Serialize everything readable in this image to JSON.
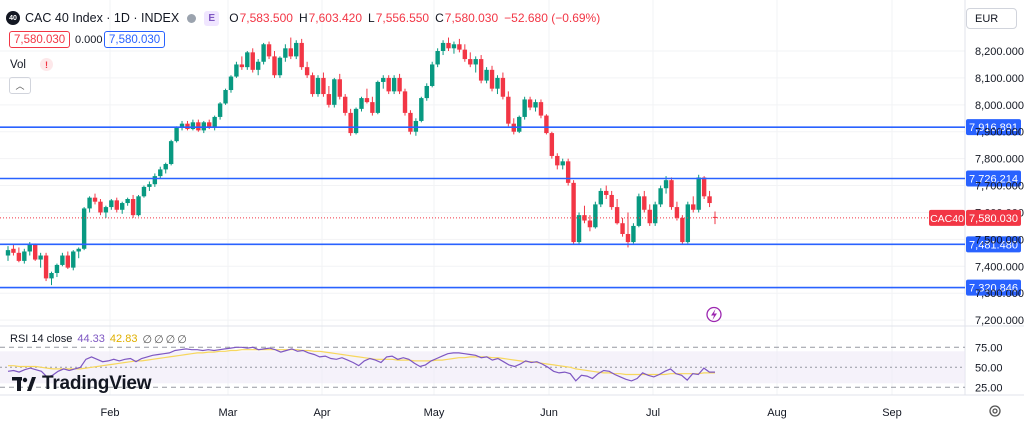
{
  "header": {
    "badge": "40",
    "title": "CAC 40 Index · 1D · INDEX",
    "e_badge": "E",
    "open_label": "O",
    "open": "7,583.500",
    "high_label": "H",
    "high": "7,603.420",
    "low_label": "L",
    "low": "7,556.550",
    "close_label": "C",
    "close": "7,580.030",
    "change": "−52.680 (−0.69%)"
  },
  "quote": {
    "sell": "7,580.030",
    "spread": "0.000",
    "buy": "7,580.030"
  },
  "volume": {
    "label": "Vol",
    "warning": "!"
  },
  "currency": "EUR",
  "rsi_header": {
    "label": "RSI 14 close",
    "value": "44.33",
    "ma": "42.83",
    "empties": [
      "∅",
      "∅",
      "∅",
      "∅"
    ]
  },
  "logo": {
    "text": "TradingView"
  },
  "colors": {
    "up": "#089981",
    "down": "#f23645",
    "hline": "#2962ff",
    "rsi": "#7e57c2",
    "rsi_ma": "#f7d75d",
    "rsi_band": "#ede7f6"
  },
  "chart_data": {
    "type": "candlestick",
    "price_axis": {
      "ticks": [
        "8,200.000",
        "8,100.000",
        "8,000.000",
        "7,900.000",
        "7,800.000",
        "7,700.000",
        "7,600.000",
        "7,500.000",
        "7,400.000",
        "7,300.000",
        "7,200.000"
      ],
      "tick_values": [
        8200,
        8100,
        8000,
        7900,
        7800,
        7700,
        7600,
        7500,
        7400,
        7300,
        7200
      ]
    },
    "time_axis": [
      "Feb",
      "Mar",
      "Apr",
      "May",
      "Jun",
      "Jul",
      "Aug",
      "Sep"
    ],
    "horizontal_lines": [
      {
        "label": "7,916.891",
        "value": 7916.891
      },
      {
        "label": "7,726.214",
        "value": 7726.214
      },
      {
        "label": "7,481.480",
        "value": 7481.48
      },
      {
        "label": "7,320.846",
        "value": 7320.846
      }
    ],
    "last_price": {
      "symbol": "CAC40",
      "label": "7,580.030",
      "value": 7580.03
    },
    "candles": [
      {
        "o": 7440,
        "h": 7475,
        "l": 7420,
        "c": 7460
      },
      {
        "o": 7465,
        "h": 7480,
        "l": 7440,
        "c": 7450
      },
      {
        "o": 7450,
        "h": 7470,
        "l": 7415,
        "c": 7420
      },
      {
        "o": 7420,
        "h": 7465,
        "l": 7410,
        "c": 7455
      },
      {
        "o": 7455,
        "h": 7490,
        "l": 7440,
        "c": 7480
      },
      {
        "o": 7480,
        "h": 7485,
        "l": 7420,
        "c": 7425
      },
      {
        "o": 7425,
        "h": 7450,
        "l": 7395,
        "c": 7440
      },
      {
        "o": 7440,
        "h": 7450,
        "l": 7345,
        "c": 7355
      },
      {
        "o": 7355,
        "h": 7380,
        "l": 7330,
        "c": 7375
      },
      {
        "o": 7375,
        "h": 7410,
        "l": 7360,
        "c": 7405
      },
      {
        "o": 7405,
        "h": 7450,
        "l": 7400,
        "c": 7440
      },
      {
        "o": 7440,
        "h": 7455,
        "l": 7390,
        "c": 7395
      },
      {
        "o": 7395,
        "h": 7460,
        "l": 7385,
        "c": 7455
      },
      {
        "o": 7455,
        "h": 7470,
        "l": 7430,
        "c": 7465
      },
      {
        "o": 7465,
        "h": 7620,
        "l": 7460,
        "c": 7615
      },
      {
        "o": 7615,
        "h": 7660,
        "l": 7600,
        "c": 7655
      },
      {
        "o": 7655,
        "h": 7670,
        "l": 7630,
        "c": 7640
      },
      {
        "o": 7640,
        "h": 7650,
        "l": 7590,
        "c": 7600
      },
      {
        "o": 7600,
        "h": 7625,
        "l": 7580,
        "c": 7620
      },
      {
        "o": 7620,
        "h": 7650,
        "l": 7610,
        "c": 7645
      },
      {
        "o": 7645,
        "h": 7655,
        "l": 7600,
        "c": 7610
      },
      {
        "o": 7610,
        "h": 7640,
        "l": 7595,
        "c": 7635
      },
      {
        "o": 7635,
        "h": 7655,
        "l": 7625,
        "c": 7650
      },
      {
        "o": 7650,
        "h": 7665,
        "l": 7580,
        "c": 7590
      },
      {
        "o": 7590,
        "h": 7665,
        "l": 7585,
        "c": 7660
      },
      {
        "o": 7660,
        "h": 7700,
        "l": 7655,
        "c": 7695
      },
      {
        "o": 7695,
        "h": 7715,
        "l": 7680,
        "c": 7705
      },
      {
        "o": 7705,
        "h": 7745,
        "l": 7695,
        "c": 7735
      },
      {
        "o": 7735,
        "h": 7770,
        "l": 7725,
        "c": 7760
      },
      {
        "o": 7760,
        "h": 7785,
        "l": 7745,
        "c": 7780
      },
      {
        "o": 7780,
        "h": 7870,
        "l": 7775,
        "c": 7865
      },
      {
        "o": 7865,
        "h": 7920,
        "l": 7860,
        "c": 7915
      },
      {
        "o": 7915,
        "h": 7940,
        "l": 7905,
        "c": 7930
      },
      {
        "o": 7930,
        "h": 7940,
        "l": 7905,
        "c": 7910
      },
      {
        "o": 7910,
        "h": 7945,
        "l": 7905,
        "c": 7935
      },
      {
        "o": 7935,
        "h": 7945,
        "l": 7900,
        "c": 7905
      },
      {
        "o": 7905,
        "h": 7940,
        "l": 7895,
        "c": 7935
      },
      {
        "o": 7935,
        "h": 7945,
        "l": 7910,
        "c": 7915
      },
      {
        "o": 7915,
        "h": 7960,
        "l": 7905,
        "c": 7955
      },
      {
        "o": 7955,
        "h": 8010,
        "l": 7945,
        "c": 8005
      },
      {
        "o": 8005,
        "h": 8060,
        "l": 8000,
        "c": 8055
      },
      {
        "o": 8055,
        "h": 8110,
        "l": 8045,
        "c": 8105
      },
      {
        "o": 8105,
        "h": 8160,
        "l": 8100,
        "c": 8150
      },
      {
        "o": 8150,
        "h": 8180,
        "l": 8130,
        "c": 8140
      },
      {
        "o": 8140,
        "h": 8200,
        "l": 8130,
        "c": 8195
      },
      {
        "o": 8195,
        "h": 8210,
        "l": 8120,
        "c": 8130
      },
      {
        "o": 8130,
        "h": 8170,
        "l": 8110,
        "c": 8160
      },
      {
        "o": 8160,
        "h": 8230,
        "l": 8150,
        "c": 8225
      },
      {
        "o": 8225,
        "h": 8235,
        "l": 8170,
        "c": 8180
      },
      {
        "o": 8180,
        "h": 8200,
        "l": 8100,
        "c": 8110
      },
      {
        "o": 8110,
        "h": 8180,
        "l": 8100,
        "c": 8175
      },
      {
        "o": 8175,
        "h": 8225,
        "l": 8160,
        "c": 8210
      },
      {
        "o": 8210,
        "h": 8250,
        "l": 8170,
        "c": 8180
      },
      {
        "o": 8180,
        "h": 8240,
        "l": 8170,
        "c": 8230
      },
      {
        "o": 8230,
        "h": 8245,
        "l": 8130,
        "c": 8140
      },
      {
        "o": 8140,
        "h": 8160,
        "l": 8100,
        "c": 8110
      },
      {
        "o": 8110,
        "h": 8120,
        "l": 8030,
        "c": 8040
      },
      {
        "o": 8040,
        "h": 8110,
        "l": 8030,
        "c": 8100
      },
      {
        "o": 8100,
        "h": 8120,
        "l": 8030,
        "c": 8040
      },
      {
        "o": 8040,
        "h": 8070,
        "l": 7990,
        "c": 8000
      },
      {
        "o": 8000,
        "h": 8100,
        "l": 7990,
        "c": 8095
      },
      {
        "o": 8095,
        "h": 8115,
        "l": 8020,
        "c": 8030
      },
      {
        "o": 8030,
        "h": 8040,
        "l": 7960,
        "c": 7970
      },
      {
        "o": 7970,
        "h": 7985,
        "l": 7885,
        "c": 7895
      },
      {
        "o": 7895,
        "h": 7990,
        "l": 7890,
        "c": 7985
      },
      {
        "o": 7985,
        "h": 8030,
        "l": 7975,
        "c": 8025
      },
      {
        "o": 8025,
        "h": 8060,
        "l": 8005,
        "c": 8010
      },
      {
        "o": 8010,
        "h": 8030,
        "l": 7960,
        "c": 7970
      },
      {
        "o": 7970,
        "h": 8090,
        "l": 7965,
        "c": 8085
      },
      {
        "o": 8085,
        "h": 8110,
        "l": 8060,
        "c": 8100
      },
      {
        "o": 8100,
        "h": 8110,
        "l": 8040,
        "c": 8050
      },
      {
        "o": 8050,
        "h": 8110,
        "l": 8040,
        "c": 8100
      },
      {
        "o": 8100,
        "h": 8115,
        "l": 8040,
        "c": 8050
      },
      {
        "o": 8050,
        "h": 8060,
        "l": 7960,
        "c": 7970
      },
      {
        "o": 7970,
        "h": 7980,
        "l": 7890,
        "c": 7900
      },
      {
        "o": 7900,
        "h": 7950,
        "l": 7885,
        "c": 7940
      },
      {
        "o": 7940,
        "h": 8030,
        "l": 7935,
        "c": 8025
      },
      {
        "o": 8025,
        "h": 8080,
        "l": 8015,
        "c": 8070
      },
      {
        "o": 8070,
        "h": 8160,
        "l": 8065,
        "c": 8150
      },
      {
        "o": 8150,
        "h": 8210,
        "l": 8140,
        "c": 8200
      },
      {
        "o": 8200,
        "h": 8240,
        "l": 8185,
        "c": 8230
      },
      {
        "o": 8230,
        "h": 8250,
        "l": 8200,
        "c": 8210
      },
      {
        "o": 8210,
        "h": 8235,
        "l": 8190,
        "c": 8225
      },
      {
        "o": 8225,
        "h": 8245,
        "l": 8195,
        "c": 8205
      },
      {
        "o": 8205,
        "h": 8225,
        "l": 8160,
        "c": 8170
      },
      {
        "o": 8170,
        "h": 8195,
        "l": 8140,
        "c": 8150
      },
      {
        "o": 8150,
        "h": 8180,
        "l": 8120,
        "c": 8170
      },
      {
        "o": 8170,
        "h": 8185,
        "l": 8080,
        "c": 8090
      },
      {
        "o": 8090,
        "h": 8140,
        "l": 8080,
        "c": 8130
      },
      {
        "o": 8130,
        "h": 8145,
        "l": 8050,
        "c": 8060
      },
      {
        "o": 8060,
        "h": 8110,
        "l": 8040,
        "c": 8100
      },
      {
        "o": 8100,
        "h": 8120,
        "l": 8020,
        "c": 8030
      },
      {
        "o": 8030,
        "h": 8050,
        "l": 7920,
        "c": 7930
      },
      {
        "o": 7930,
        "h": 7950,
        "l": 7890,
        "c": 7900
      },
      {
        "o": 7900,
        "h": 7960,
        "l": 7895,
        "c": 7955
      },
      {
        "o": 7955,
        "h": 8030,
        "l": 7945,
        "c": 8020
      },
      {
        "o": 8020,
        "h": 8030,
        "l": 7980,
        "c": 7990
      },
      {
        "o": 7990,
        "h": 8020,
        "l": 7975,
        "c": 8010
      },
      {
        "o": 8010,
        "h": 8020,
        "l": 7950,
        "c": 7960
      },
      {
        "o": 7960,
        "h": 7965,
        "l": 7890,
        "c": 7895
      },
      {
        "o": 7895,
        "h": 7900,
        "l": 7800,
        "c": 7810
      },
      {
        "o": 7810,
        "h": 7820,
        "l": 7760,
        "c": 7775
      },
      {
        "o": 7775,
        "h": 7800,
        "l": 7760,
        "c": 7790
      },
      {
        "o": 7790,
        "h": 7800,
        "l": 7700,
        "c": 7710
      },
      {
        "o": 7710,
        "h": 7720,
        "l": 7480,
        "c": 7490
      },
      {
        "o": 7490,
        "h": 7600,
        "l": 7480,
        "c": 7590
      },
      {
        "o": 7590,
        "h": 7625,
        "l": 7560,
        "c": 7570
      },
      {
        "o": 7570,
        "h": 7590,
        "l": 7530,
        "c": 7545
      },
      {
        "o": 7545,
        "h": 7640,
        "l": 7540,
        "c": 7630
      },
      {
        "o": 7630,
        "h": 7690,
        "l": 7620,
        "c": 7680
      },
      {
        "o": 7680,
        "h": 7700,
        "l": 7650,
        "c": 7665
      },
      {
        "o": 7665,
        "h": 7680,
        "l": 7610,
        "c": 7620
      },
      {
        "o": 7620,
        "h": 7650,
        "l": 7555,
        "c": 7560
      },
      {
        "o": 7560,
        "h": 7580,
        "l": 7510,
        "c": 7520
      },
      {
        "o": 7520,
        "h": 7600,
        "l": 7470,
        "c": 7490
      },
      {
        "o": 7490,
        "h": 7560,
        "l": 7485,
        "c": 7550
      },
      {
        "o": 7550,
        "h": 7670,
        "l": 7545,
        "c": 7660
      },
      {
        "o": 7660,
        "h": 7680,
        "l": 7600,
        "c": 7610
      },
      {
        "o": 7610,
        "h": 7630,
        "l": 7550,
        "c": 7560
      },
      {
        "o": 7560,
        "h": 7640,
        "l": 7550,
        "c": 7630
      },
      {
        "o": 7630,
        "h": 7700,
        "l": 7620,
        "c": 7690
      },
      {
        "o": 7690,
        "h": 7735,
        "l": 7670,
        "c": 7720
      },
      {
        "o": 7720,
        "h": 7730,
        "l": 7610,
        "c": 7620
      },
      {
        "o": 7620,
        "h": 7640,
        "l": 7570,
        "c": 7580
      },
      {
        "o": 7580,
        "h": 7590,
        "l": 7480,
        "c": 7490
      },
      {
        "o": 7490,
        "h": 7640,
        "l": 7485,
        "c": 7630
      },
      {
        "o": 7630,
        "h": 7660,
        "l": 7600,
        "c": 7610
      },
      {
        "o": 7610,
        "h": 7740,
        "l": 7600,
        "c": 7730
      },
      {
        "o": 7730,
        "h": 7735,
        "l": 7650,
        "c": 7660
      },
      {
        "o": 7660,
        "h": 7680,
        "l": 7620,
        "c": 7635
      },
      {
        "o": 7583.5,
        "h": 7603.42,
        "l": 7556.55,
        "c": 7580.03
      }
    ],
    "rsi": {
      "label": "RSI 14 close",
      "levels": [
        75,
        50,
        25
      ],
      "level_labels": [
        "75.00",
        "50.00",
        "25.00"
      ],
      "band": [
        30,
        70
      ],
      "values": [
        45,
        46,
        44,
        47,
        49,
        47,
        45,
        38,
        40,
        45,
        48,
        46,
        48,
        50,
        60,
        63,
        60,
        57,
        58,
        60,
        58,
        60,
        61,
        57,
        61,
        63,
        65,
        66,
        67,
        68,
        71,
        72,
        73,
        72,
        72,
        71,
        72,
        71,
        72,
        73,
        74,
        75,
        75,
        74,
        75,
        72,
        73,
        74,
        72,
        69,
        71,
        73,
        70,
        71,
        68,
        66,
        63,
        64,
        61,
        60,
        62,
        59,
        56,
        52,
        58,
        61,
        59,
        56,
        63,
        64,
        60,
        62,
        60,
        55,
        51,
        53,
        58,
        61,
        64,
        67,
        68,
        68,
        67,
        66,
        65,
        62,
        63,
        59,
        61,
        57,
        53,
        51,
        54,
        58,
        56,
        57,
        54,
        50,
        45,
        43,
        44,
        42,
        33,
        40,
        39,
        36,
        42,
        46,
        45,
        41,
        38,
        35,
        33,
        36,
        43,
        40,
        38,
        41,
        45,
        48,
        42,
        40,
        34,
        42,
        41,
        49,
        44,
        44
      ],
      "ma_values": [
        52,
        52,
        51,
        51,
        51,
        51,
        50,
        49,
        48,
        48,
        48,
        48,
        48,
        48,
        49,
        50,
        51,
        52,
        53,
        54,
        55,
        56,
        57,
        58,
        58,
        59,
        60,
        61,
        62,
        63,
        64,
        65,
        66,
        67,
        68,
        68,
        69,
        69,
        70,
        70,
        71,
        71,
        72,
        72,
        72,
        72,
        72,
        72,
        72,
        72,
        72,
        72,
        72,
        71,
        71,
        70,
        70,
        69,
        68,
        67,
        66,
        65,
        64,
        63,
        62,
        61,
        60,
        60,
        60,
        60,
        59,
        59,
        59,
        58,
        58,
        58,
        58,
        59,
        59,
        60,
        61,
        62,
        62,
        63,
        63,
        63,
        63,
        62,
        62,
        61,
        60,
        59,
        58,
        57,
        57,
        56,
        55,
        54,
        53,
        52,
        51,
        50,
        48,
        47,
        46,
        45,
        44,
        43,
        43,
        42,
        42,
        41,
        41,
        41,
        41,
        41,
        41,
        41,
        41,
        42,
        42,
        42,
        42,
        42,
        42,
        43,
        43,
        43
      ]
    }
  }
}
